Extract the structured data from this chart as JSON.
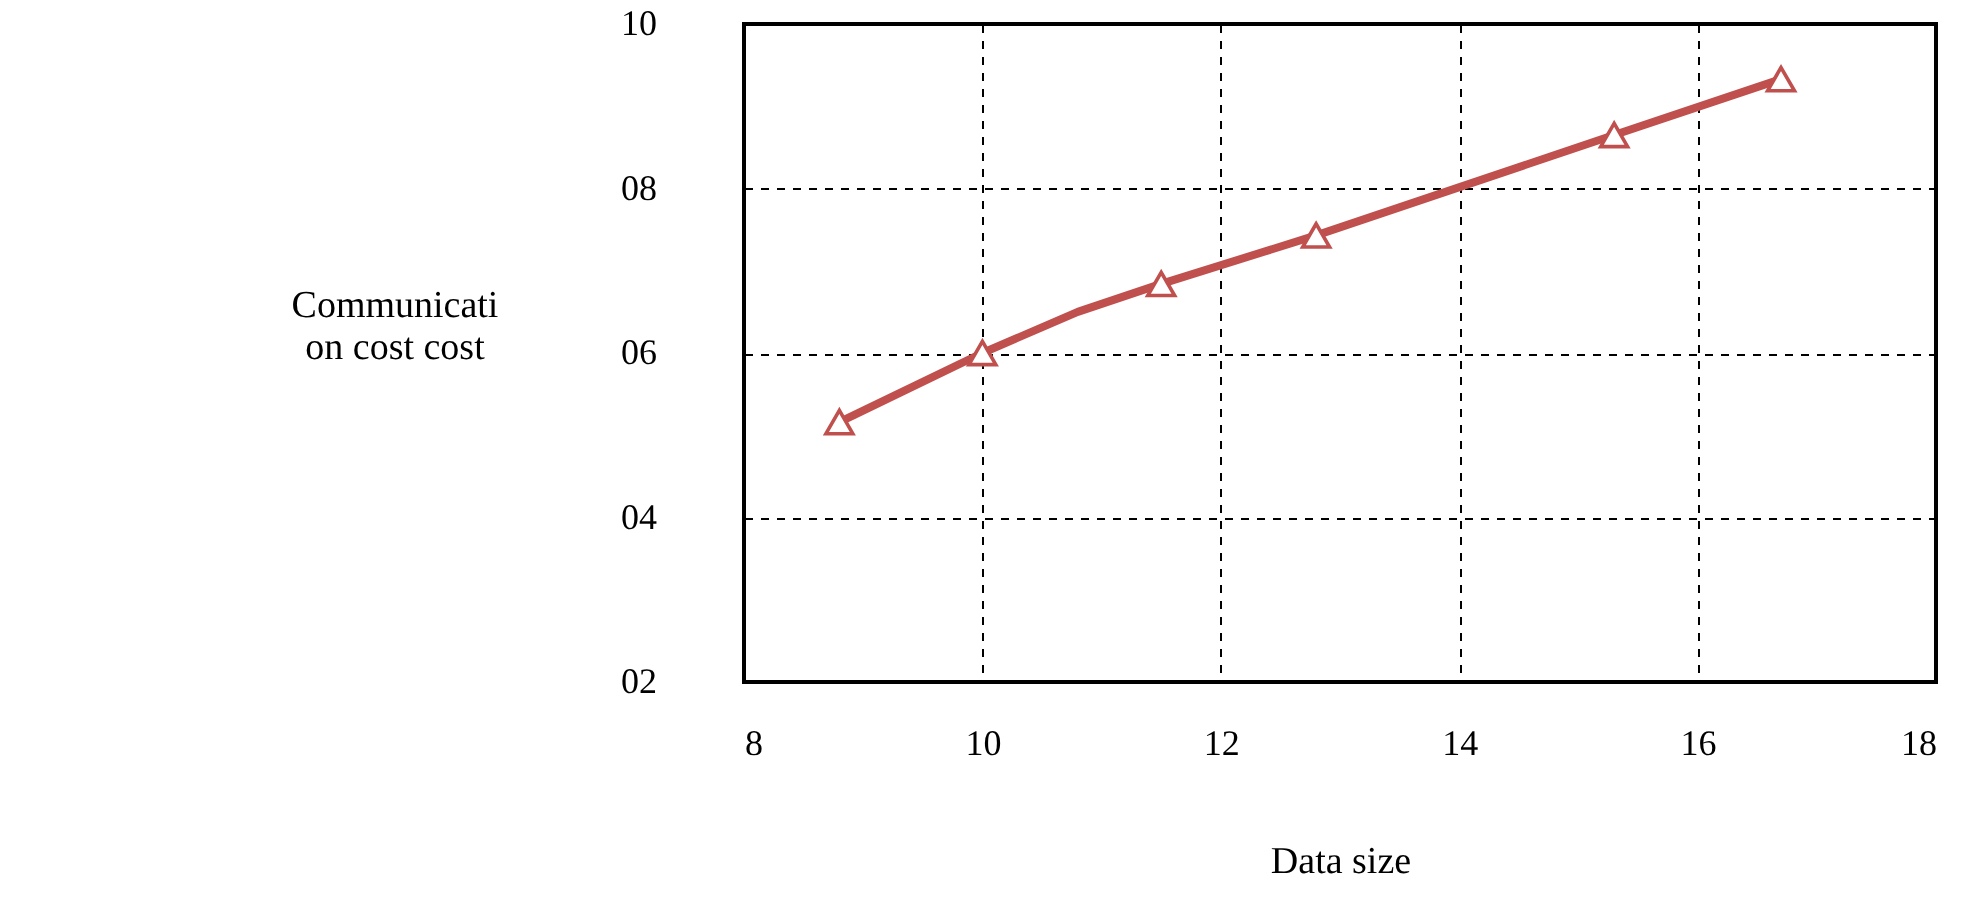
{
  "chart_data": {
    "type": "line",
    "xlabel": "Data size",
    "ylabel": "Communicati on cost cost",
    "xlim": [
      8,
      18
    ],
    "xticks": [
      8,
      10,
      12,
      14,
      16,
      18
    ],
    "ylim": [
      2,
      10
    ],
    "yticks": [
      {
        "value": 2,
        "label": "02"
      },
      {
        "value": 4,
        "label": "04"
      },
      {
        "value": 6,
        "label": "06"
      },
      {
        "value": 8,
        "label": "08"
      },
      {
        "value": 10,
        "label": "10"
      }
    ],
    "grid": true,
    "series": [
      {
        "marker": "none",
        "color": "#c0504d",
        "x": [
          8.8,
          10,
          10.8,
          11.5,
          12.8,
          15.3,
          16.7
        ],
        "values": [
          5.16,
          6.0,
          6.5,
          6.84,
          7.43,
          8.65,
          9.33
        ]
      },
      {
        "type": "scatter",
        "marker": "triangle",
        "color": "#c0504d",
        "x": [
          8.8,
          10,
          11.5,
          12.8,
          15.3,
          16.7
        ],
        "values": [
          5.16,
          6.0,
          6.84,
          7.43,
          8.65,
          9.33
        ]
      }
    ]
  }
}
